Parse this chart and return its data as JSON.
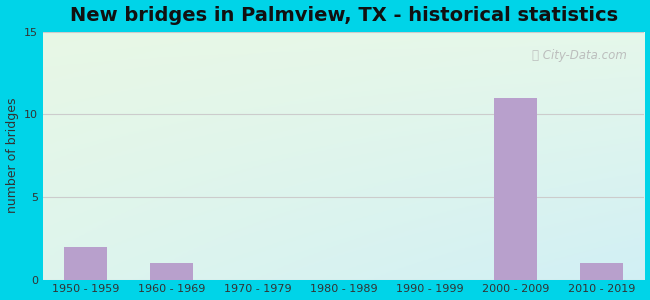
{
  "title": "New bridges in Palmview, TX - historical statistics",
  "ylabel": "number of bridges",
  "categories": [
    "1950 - 1959",
    "1960 - 1969",
    "1970 - 1979",
    "1980 - 1989",
    "1990 - 1999",
    "2000 - 2009",
    "2010 - 2019"
  ],
  "values": [
    2,
    1,
    0,
    0,
    0,
    11,
    1
  ],
  "bar_color": "#b8a0cc",
  "ylim": [
    0,
    15
  ],
  "yticks": [
    0,
    5,
    10,
    15
  ],
  "background_outer": "#00d4e8",
  "grid_color": "#cccccc",
  "title_fontsize": 14,
  "label_fontsize": 9,
  "tick_fontsize": 8,
  "watermark": "City-Data.com"
}
